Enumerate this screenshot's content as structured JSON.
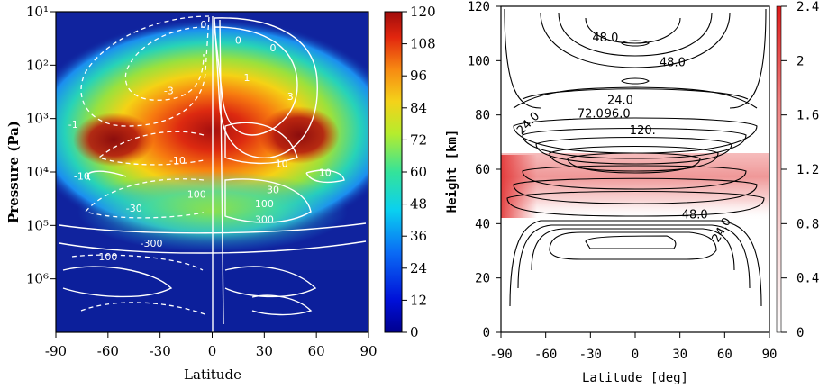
{
  "chart_data": [
    {
      "type": "heatmap",
      "xlabel": "Latitude",
      "ylabel": "Pressure (Pa)",
      "xlim": [
        -90,
        90
      ],
      "x_ticks": [
        -90,
        -60,
        -30,
        0,
        30,
        60,
        90
      ],
      "y_scale": "log, inverted",
      "ylim": [
        10,
        10000000
      ],
      "y_tick_labels": [
        "10¹",
        "10²",
        "10³",
        "10⁴",
        "10⁵",
        "10⁶"
      ],
      "colorbar": {
        "range": [
          0,
          120
        ],
        "ticks": [
          0,
          12,
          24,
          36,
          48,
          60,
          72,
          84,
          96,
          108,
          120
        ],
        "colormap": "jet"
      },
      "wind_speed_max": [
        {
          "lat": -55,
          "pressure": 2000,
          "value": 115
        },
        {
          "lat": 50,
          "pressure": 2000,
          "value": 115
        }
      ],
      "contour_labels": [
        "0",
        "0",
        "0",
        "1",
        "-3",
        "-1",
        "3",
        "-10",
        "10",
        "-10",
        "10",
        "-100",
        "100",
        "30",
        "-30",
        "300",
        "-300",
        "100"
      ]
    },
    {
      "type": "heatmap",
      "xlabel": "Latitude [deg]",
      "ylabel": "Height [km]",
      "xlim": [
        -90,
        90
      ],
      "ylim": [
        0,
        120
      ],
      "x_tick_labels": [
        "-90",
        "-60",
        "-30",
        "0",
        "30",
        "60",
        "90"
      ],
      "y_tick_labels": [
        "0",
        "20",
        "40",
        "60",
        "80",
        "100",
        "120"
      ],
      "colorbar": {
        "range": [
          0,
          2.4
        ],
        "ticks": [
          "0",
          "0.4",
          "0.8",
          "1.2",
          "1.6",
          "2",
          "2.4"
        ],
        "color": "#dd2222"
      },
      "contour_labels": [
        "48.0",
        "48.0",
        "24.0",
        "24.0",
        "72.0",
        "96.0",
        "120.",
        "48.0",
        "24.0"
      ],
      "shading_band_km": [
        42,
        66
      ]
    }
  ]
}
